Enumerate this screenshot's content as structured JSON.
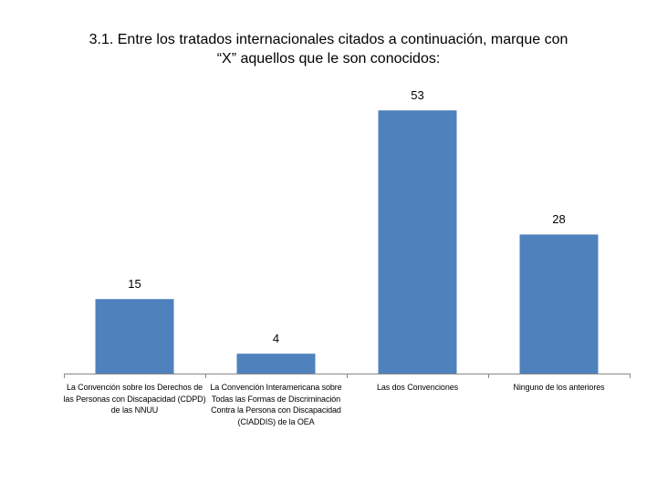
{
  "title": {
    "line1": "3.1. Entre los tratados internacionales citados a continuación, marque con",
    "line2": "“X” aquellos que le son conocidos:"
  },
  "colors": {
    "bar": "#4f81bd",
    "axis": "#888888"
  },
  "chart_data": {
    "type": "bar",
    "title": "3.1. Entre los tratados internacionales citados a continuación, marque con “X” aquellos que le son conocidos:",
    "categories": [
      "La Convención sobre los Derechos de las Personas con Discapacidad (CDPD) de las NNUU",
      "La Convención Interamericana sobre Todas las Formas de Discriminación Contra la Persona con Discapacidad (CIADDIS) de la OEA",
      "Las dos Convenciones",
      "Ninguno de los anteriores"
    ],
    "values": [
      15,
      4,
      53,
      28
    ],
    "data_labels": [
      "15",
      "4",
      "53",
      "28"
    ],
    "ylim": [
      0,
      60
    ],
    "grid": false,
    "legend": "none"
  }
}
